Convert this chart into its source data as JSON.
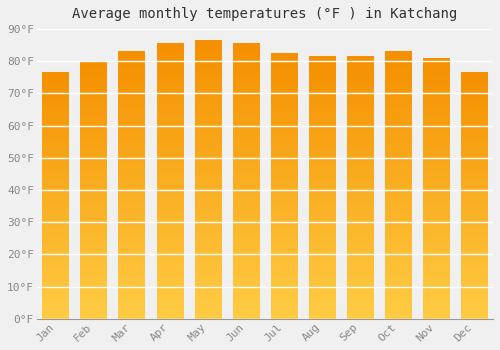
{
  "title": "Average monthly temperatures (°F ) in Katchang",
  "months": [
    "Jan",
    "Feb",
    "Mar",
    "Apr",
    "May",
    "Jun",
    "Jul",
    "Aug",
    "Sep",
    "Oct",
    "Nov",
    "Dec"
  ],
  "values": [
    76.5,
    80.0,
    83.0,
    85.5,
    86.5,
    85.5,
    82.5,
    81.5,
    81.5,
    83.0,
    81.0,
    76.5
  ],
  "bar_color_bottom": "#FFCC44",
  "bar_color_top": "#F59000",
  "ylim": [
    0,
    90
  ],
  "yticks": [
    0,
    10,
    20,
    30,
    40,
    50,
    60,
    70,
    80,
    90
  ],
  "ytick_labels": [
    "0°F",
    "10°F",
    "20°F",
    "30°F",
    "40°F",
    "50°F",
    "60°F",
    "70°F",
    "80°F",
    "90°F"
  ],
  "background_color": "#f0f0f0",
  "grid_color": "#ffffff",
  "title_fontsize": 10,
  "tick_fontsize": 8,
  "bar_width": 0.7
}
